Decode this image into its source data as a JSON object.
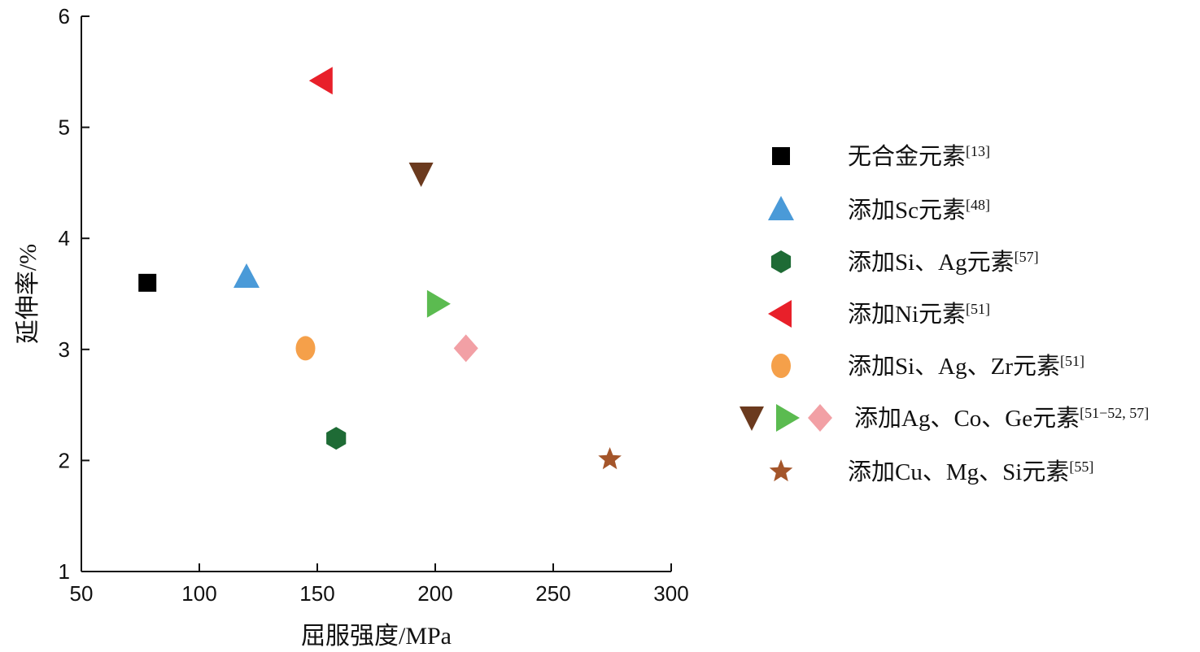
{
  "chart_data": {
    "type": "scatter",
    "xlabel": "屈服强度/MPa",
    "ylabel": "延伸率/%",
    "xlim": [
      50,
      300
    ],
    "ylim": [
      1,
      6
    ],
    "xticks": [
      50,
      100,
      150,
      200,
      250,
      300
    ],
    "yticks": [
      1,
      2,
      3,
      4,
      5,
      6
    ],
    "grid": false,
    "legend_position": "right",
    "series": [
      {
        "name": "无合金元素",
        "ref": "[13]",
        "marker": "square",
        "color": "#000000",
        "points": [
          {
            "x": 78,
            "y": 3.6
          }
        ]
      },
      {
        "name": "添加Sc元素",
        "ref": "[48]",
        "marker": "triangle-up",
        "color": "#4a9ad8",
        "points": [
          {
            "x": 120,
            "y": 3.65
          }
        ]
      },
      {
        "name": "添加Si、Ag元素",
        "ref": "[57]",
        "marker": "hexagon",
        "color": "#1e6b35",
        "points": [
          {
            "x": 158,
            "y": 2.2
          }
        ]
      },
      {
        "name": "添加Ni元素",
        "ref": "[51]",
        "marker": "triangle-left",
        "color": "#e8202a",
        "points": [
          {
            "x": 152,
            "y": 5.42
          }
        ]
      },
      {
        "name": "添加Si、Ag、Zr元素",
        "ref": "[51]",
        "marker": "circle",
        "color": "#f5a04a",
        "points": [
          {
            "x": 145,
            "y": 3.01
          }
        ]
      },
      {
        "name": "添加Ag、Co、Ge元素",
        "ref": "[51−52, 57]",
        "markers": [
          {
            "marker": "triangle-down",
            "color": "#6b3a1e",
            "points": [
              {
                "x": 194,
                "y": 4.58
              }
            ]
          },
          {
            "marker": "triangle-right",
            "color": "#5bbb50",
            "points": [
              {
                "x": 201,
                "y": 3.41
              }
            ]
          },
          {
            "marker": "diamond",
            "color": "#f2a0a5",
            "points": [
              {
                "x": 213,
                "y": 3.01
              }
            ]
          }
        ]
      },
      {
        "name": "添加Cu、Mg、Si元素",
        "ref": "[55]",
        "marker": "star",
        "color": "#a4552a",
        "points": [
          {
            "x": 274,
            "y": 2.01
          }
        ]
      }
    ]
  }
}
